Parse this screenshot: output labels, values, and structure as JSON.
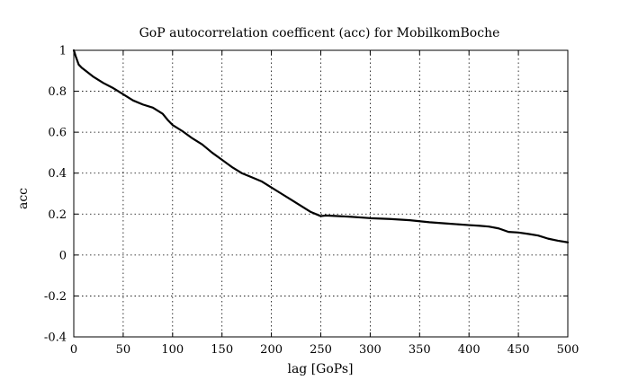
{
  "chart_data": {
    "type": "line",
    "title": "GoP autocorrelation coefficent (acc) for MobilkomBoche",
    "xlabel": "lag [GoPs]",
    "ylabel": "acc",
    "xlim": [
      0,
      500
    ],
    "ylim": [
      -0.4,
      1
    ],
    "xticks": [
      0,
      50,
      100,
      150,
      200,
      250,
      300,
      350,
      400,
      450,
      500
    ],
    "yticks": [
      -0.4,
      -0.2,
      0,
      0.2,
      0.4,
      0.6,
      0.8,
      1
    ],
    "xtick_labels": [
      "0",
      "50",
      "100",
      "150",
      "200",
      "250",
      "300",
      "350",
      "400",
      "450",
      "500"
    ],
    "ytick_labels": [
      "-0.4",
      "-0.2",
      "0",
      "0.2",
      "0.4",
      "0.6",
      "0.8",
      "1"
    ],
    "grid": true,
    "series": [
      {
        "color": "#000000",
        "x": [
          0,
          2,
          5,
          8,
          12,
          20,
          30,
          40,
          50,
          60,
          70,
          80,
          90,
          95,
          100,
          110,
          120,
          130,
          140,
          150,
          160,
          170,
          180,
          190,
          200,
          210,
          220,
          230,
          240,
          250,
          255,
          260,
          280,
          300,
          320,
          340,
          360,
          380,
          400,
          410,
          420,
          430,
          440,
          450,
          460,
          470,
          480,
          490,
          500
        ],
        "y": [
          1.0,
          0.97,
          0.93,
          0.915,
          0.9,
          0.87,
          0.84,
          0.815,
          0.785,
          0.755,
          0.735,
          0.72,
          0.69,
          0.66,
          0.635,
          0.605,
          0.57,
          0.54,
          0.5,
          0.465,
          0.43,
          0.4,
          0.38,
          0.36,
          0.33,
          0.3,
          0.27,
          0.24,
          0.21,
          0.19,
          0.193,
          0.192,
          0.187,
          0.18,
          0.176,
          0.17,
          0.16,
          0.153,
          0.146,
          0.143,
          0.139,
          0.13,
          0.113,
          0.11,
          0.103,
          0.095,
          0.08,
          0.07,
          0.062
        ]
      }
    ]
  }
}
